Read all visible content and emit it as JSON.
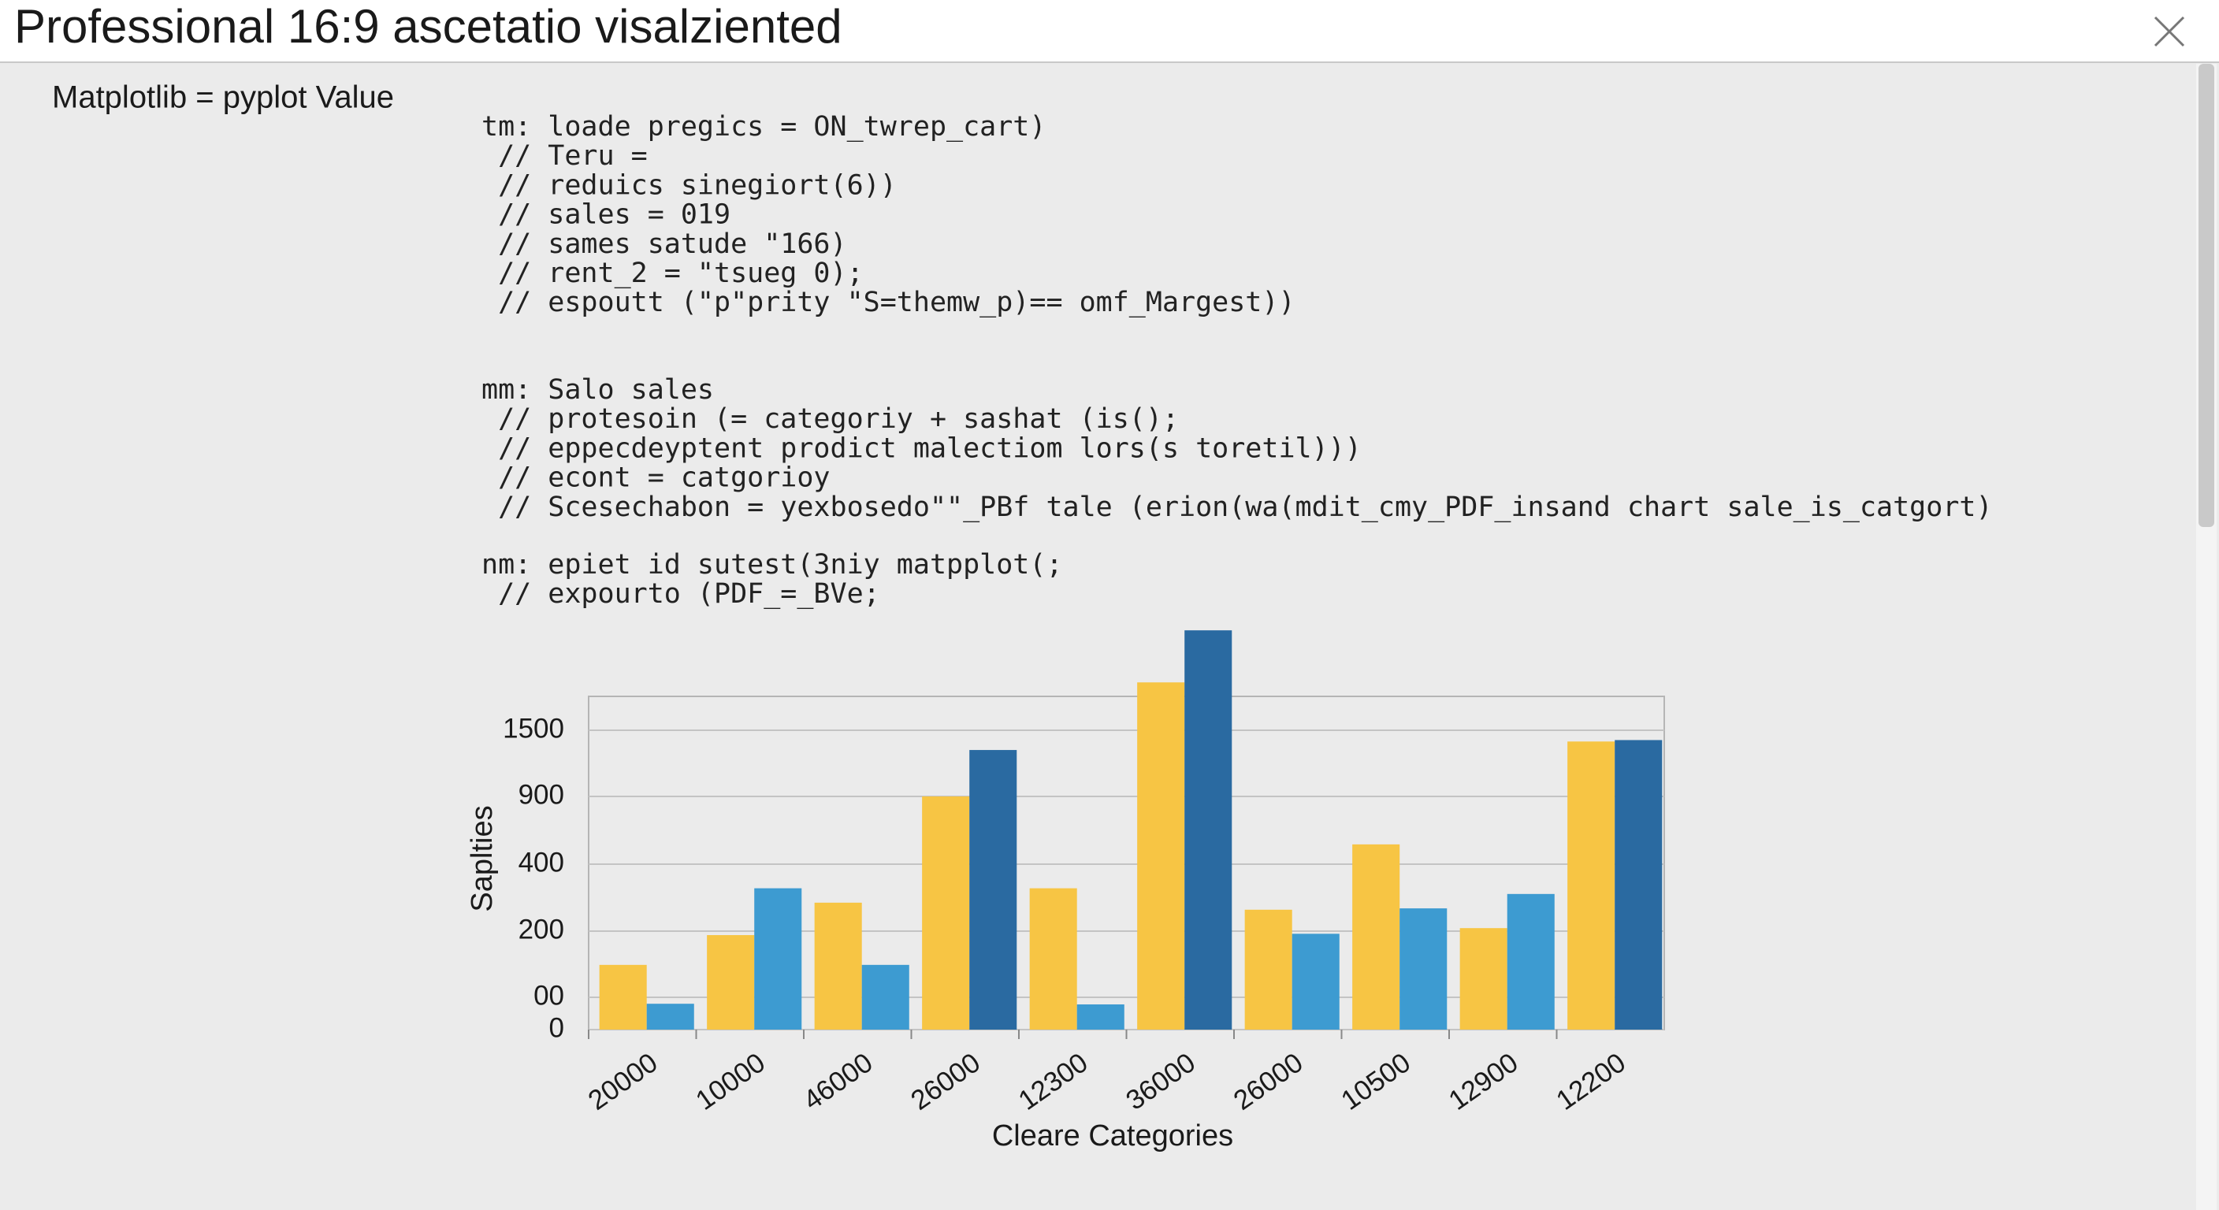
{
  "window": {
    "title": "Professional 16:9 ascetatio visalziented"
  },
  "header_label": "Matplotlib = pyplot Value",
  "code_blocks": [
    [
      "tm: loade pregics = ON_twrep_cart)",
      " // Teru =",
      " // reduics sinegiort(6))",
      " // sales = 019",
      " // sames satude \"166)",
      " // rent_2 = \"tsueg 0);",
      " // espoutt (\"p\"prity \"S=themw_p)== omf_Margest))"
    ],
    [
      "mm: Salo sales",
      " // protesoin (= categoriy + sashat (is();",
      " // eppecdeyptent prodict malectiom lors(s toretil)))",
      " // econt = catgorioy",
      " // Scesechabon = yexbosedo\"\"_PBf tale (erion(wa(mdit_cmy_PDF_insand chart sale_is_catgort)"
    ],
    [
      "nm: epiet id sutest(3niy matpplot(;",
      " // expourto (PDF_=_BVe;"
    ]
  ],
  "chart": {
    "type": "bar",
    "ylabel": "Saplties",
    "xlabel": "Cleare Categories",
    "categories": [
      "20000",
      "10000",
      "46000",
      "26000",
      "12300",
      "36000",
      "26000",
      "10500",
      "12900",
      "12200"
    ],
    "series": [
      {
        "color": "#f7c544",
        "values": [
          149,
          194,
          285,
          900,
          328,
          1934,
          264,
          546,
          209,
          1398
        ]
      },
      {
        "colors": [
          "#3d9bd1",
          "#3d9bd1",
          "#3d9bd1",
          "#2a6aa1",
          "#3d9bd1",
          "#2a6aa1",
          "#3d9bd1",
          "#3d9bd1",
          "#3d9bd1",
          "#2a6aa1"
        ],
        "values": [
          80,
          328,
          149,
          1321,
          78,
          2406,
          196,
          268,
          311,
          1411
        ]
      }
    ],
    "yticks": [
      0,
      {
        "value": 100,
        "label": "00"
      },
      200,
      400,
      900,
      1500
    ],
    "grid": true
  }
}
